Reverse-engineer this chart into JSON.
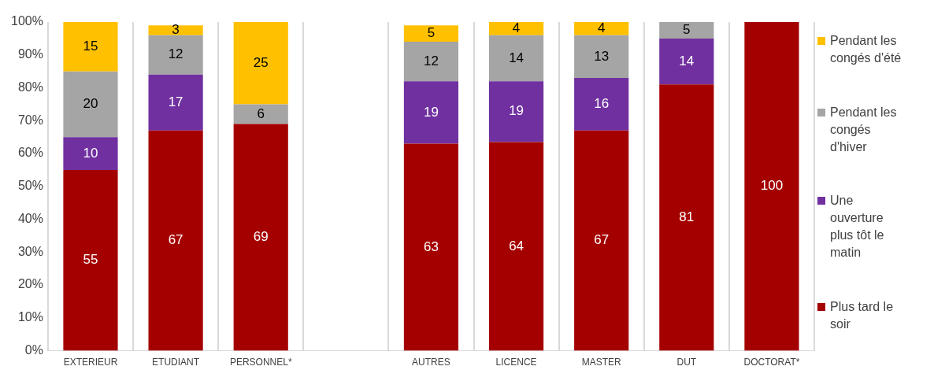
{
  "chart_data": {
    "type": "bar",
    "stacked": true,
    "categories": [
      "EXTERIEUR",
      "ETUDIANT",
      "PERSONNEL*",
      null,
      "AUTRES",
      "LICENCE",
      "MASTER",
      "DUT",
      "DOCTORAT*"
    ],
    "series": [
      {
        "name": "Plus tard le soir",
        "color": "#a50000",
        "values": [
          55,
          67,
          69,
          null,
          63,
          63.5,
          67,
          81,
          100
        ],
        "value_labels": [
          "55",
          "67",
          "69",
          null,
          "63",
          "64",
          "67",
          "81",
          "100"
        ]
      },
      {
        "name": "Une ouverture plus tôt le matin",
        "color": "#7030a0",
        "values": [
          10,
          17,
          null,
          null,
          19,
          18.5,
          16,
          14,
          null
        ],
        "value_labels": [
          "10",
          "17",
          null,
          null,
          "19",
          "19",
          "16",
          "14",
          null
        ]
      },
      {
        "name": "Pendant les congés d'hiver",
        "color": "#a5a5a5",
        "values": [
          20,
          12,
          6,
          null,
          12,
          14,
          13,
          5,
          null
        ]
      },
      {
        "name": "Pendant les congés d'été",
        "color": "#ffc000",
        "values": [
          15,
          3,
          25,
          null,
          5,
          4,
          4,
          null,
          null
        ]
      }
    ],
    "ylim": [
      0,
      100
    ],
    "yticks": [
      {
        "value": 0,
        "label": "0%"
      },
      {
        "value": 10,
        "label": "10%"
      },
      {
        "value": 20,
        "label": "20%"
      },
      {
        "value": 30,
        "label": "30%"
      },
      {
        "value": 40,
        "label": "40%"
      },
      {
        "value": 50,
        "label": "50%"
      },
      {
        "value": 60,
        "label": "60%"
      },
      {
        "value": 70,
        "label": "70%"
      },
      {
        "value": 80,
        "label": "80%"
      },
      {
        "value": 90,
        "label": "90%"
      },
      {
        "value": 100,
        "label": "100%"
      }
    ],
    "grid": "x",
    "legend": "right",
    "data_labels": true
  }
}
